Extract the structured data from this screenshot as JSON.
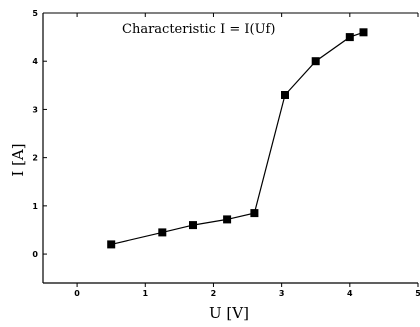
{
  "chart_data": {
    "type": "line",
    "title": "Characteristic I = I(Uf)",
    "xlabel": "U [V]",
    "ylabel": "I [A]",
    "xlim": [
      -0.5,
      5
    ],
    "ylim": [
      -0.6,
      5
    ],
    "x_ticks": [
      "0",
      "1",
      "2",
      "3",
      "4",
      "5"
    ],
    "y_ticks": [
      "0",
      "1",
      "2",
      "3",
      "4",
      "5"
    ],
    "grid": false,
    "series": [
      {
        "x": [
          0.5,
          1.25,
          1.7,
          2.2,
          2.6,
          3.05,
          3.5,
          4.0,
          4.2
        ],
        "y": [
          0.2,
          0.45,
          0.6,
          0.72,
          0.85,
          3.3,
          4.0,
          4.5,
          4.6
        ],
        "color": "#000000",
        "marker": "square"
      }
    ]
  }
}
